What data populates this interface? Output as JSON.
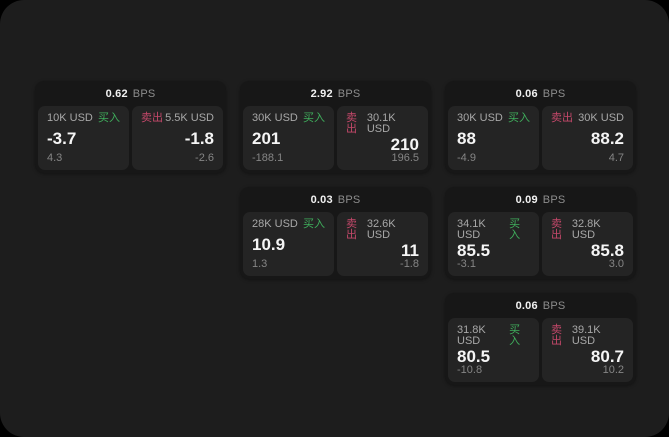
{
  "colors": {
    "background": "#000000",
    "surface": "#1d1d1d",
    "card_bg": "#171717",
    "tile_bg": "#242424",
    "buy_green": "#3fae5c",
    "sell_red": "#c4486a",
    "primary_text": "#f5f5f5",
    "muted_text": "#8d8d8d"
  },
  "labels": {
    "bps": "BPS",
    "buy": "买入",
    "sell": "卖出"
  },
  "cards": [
    {
      "bps": "0.62",
      "buy": {
        "size": "10K USD",
        "price": "-3.7",
        "delta": "4.3"
      },
      "sell": {
        "size": "5.5K USD",
        "price": "-1.8",
        "delta": "-2.6"
      }
    },
    {
      "bps": "2.92",
      "buy": {
        "size": "30K USD",
        "price": "201",
        "delta": "-188.1"
      },
      "sell": {
        "size": "30.1K USD",
        "price": "210",
        "delta": "196.5"
      }
    },
    {
      "bps": "0.06",
      "buy": {
        "size": "30K USD",
        "price": "88",
        "delta": "-4.9"
      },
      "sell": {
        "size": "30K USD",
        "price": "88.2",
        "delta": "4.7"
      }
    },
    {
      "bps": "0.03",
      "buy": {
        "size": "28K USD",
        "price": "10.9",
        "delta": "1.3"
      },
      "sell": {
        "size": "32.6K USD",
        "price": "11",
        "delta": "-1.8"
      }
    },
    {
      "bps": "0.09",
      "buy": {
        "size": "34.1K USD",
        "price": "85.5",
        "delta": "-3.1"
      },
      "sell": {
        "size": "32.8K USD",
        "price": "85.8",
        "delta": "3.0"
      }
    },
    {
      "bps": "0.06",
      "buy": {
        "size": "31.8K USD",
        "price": "80.5",
        "delta": "-10.8"
      },
      "sell": {
        "size": "39.1K USD",
        "price": "80.7",
        "delta": "10.2"
      }
    }
  ]
}
